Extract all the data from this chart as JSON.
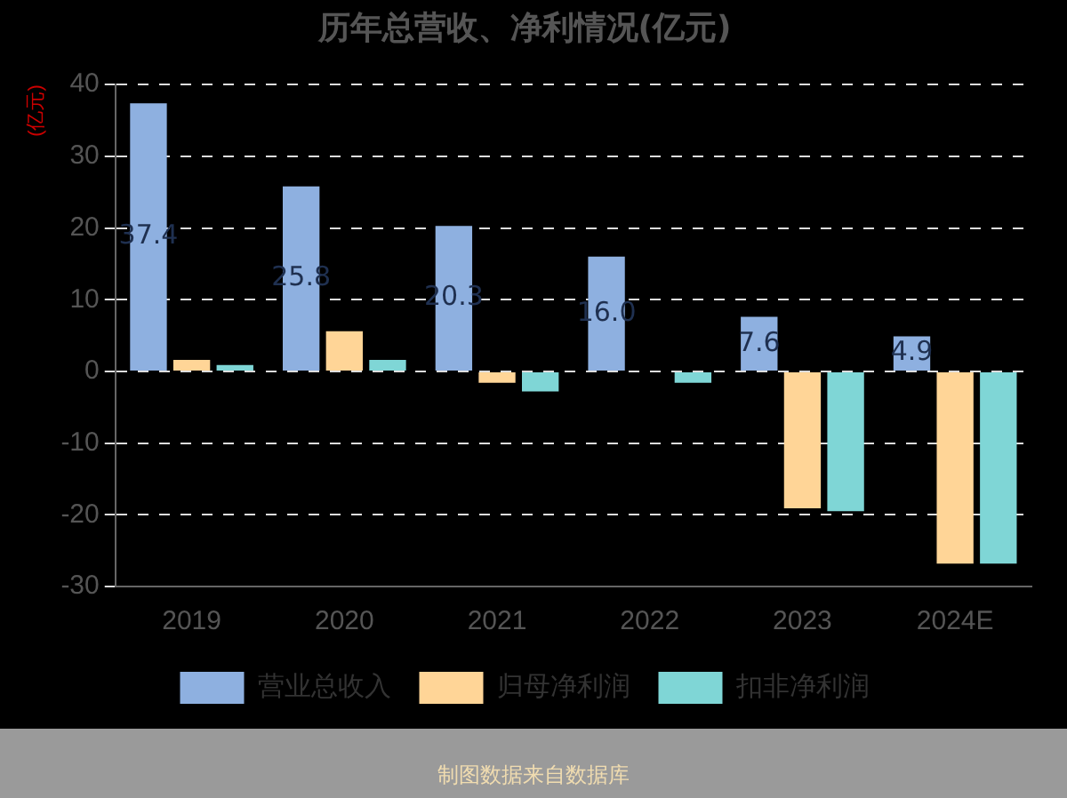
{
  "chart_data": {
    "type": "bar",
    "title": "历年总营收、净利情况(亿元)",
    "ylabel": "(亿元)",
    "categories": [
      "2019",
      "2020",
      "2021",
      "2022",
      "2023",
      "2024E"
    ],
    "series": [
      {
        "name": "营业总收入",
        "color": "#8eb0e0",
        "values": [
          37.4,
          25.8,
          20.3,
          16.0,
          7.6,
          4.9
        ],
        "value_labels": [
          "37.4",
          "25.8",
          "20.3",
          "16.0",
          "7.6",
          "4.9"
        ]
      },
      {
        "name": "归母净利润",
        "color": "#ffd597",
        "values": [
          1.6,
          5.6,
          -1.6,
          0,
          -19.1,
          -26.8
        ]
      },
      {
        "name": "扣非净利润",
        "color": "#7fd6d6",
        "values": [
          0.9,
          1.6,
          -2.8,
          -1.6,
          -19.5,
          -26.8
        ]
      }
    ],
    "ylim": [
      -30,
      40
    ],
    "yticks": [
      -30,
      -20,
      -10,
      0,
      10,
      20,
      30,
      40
    ],
    "grid": "y",
    "legend": "bottom",
    "annotations": [
      "制图数据来自数据库"
    ]
  }
}
